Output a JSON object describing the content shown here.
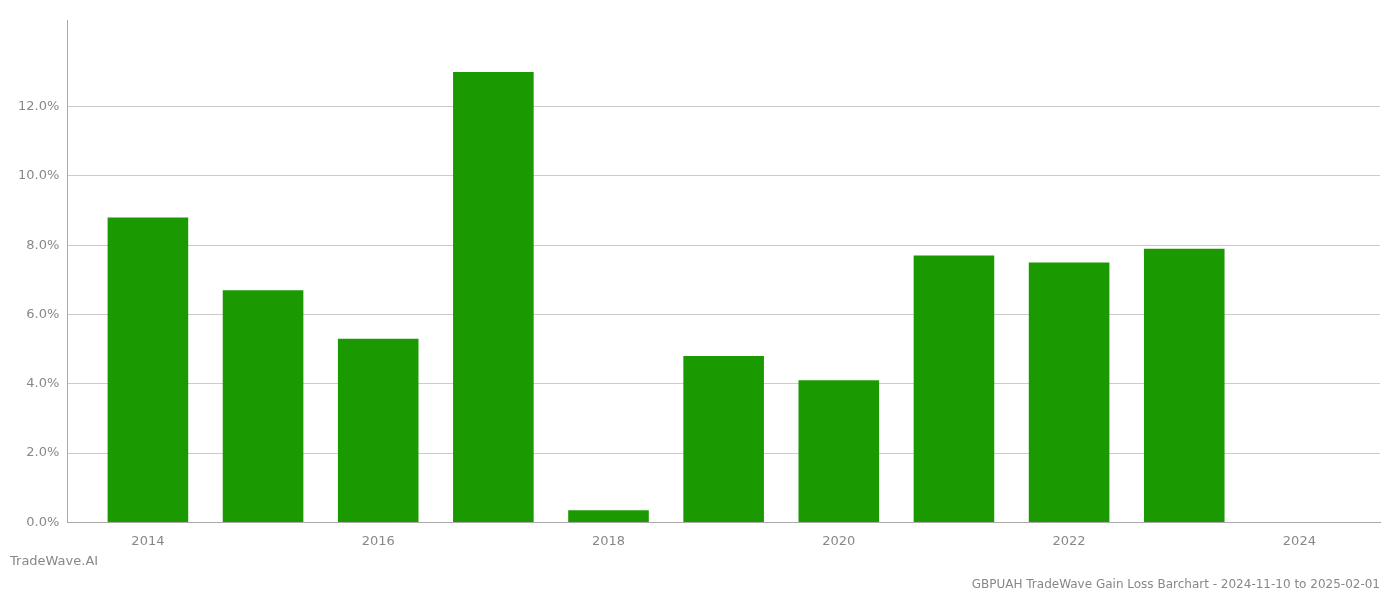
{
  "chart_data": {
    "type": "bar",
    "title": "GBPUAH TradeWave Gain Loss Barchart - 2024-11-10 to 2025-02-01",
    "annotations": [
      "TradeWave.AI"
    ],
    "x": [
      2014,
      2015,
      2016,
      2017,
      2018,
      2019,
      2020,
      2021,
      2022,
      2023
    ],
    "values": [
      0.088,
      0.067,
      0.053,
      0.13,
      0.0035,
      0.048,
      0.041,
      0.077,
      0.075,
      0.079
    ],
    "color": "#1a9a00",
    "xlim": [
      2013.3,
      2024.7
    ],
    "xticks": [
      2014,
      2016,
      2018,
      2020,
      2022,
      2024
    ],
    "ylim": [
      0,
      0.145
    ],
    "yticks": [
      {
        "value": 0.0,
        "label": "0.0%"
      },
      {
        "value": 0.02,
        "label": "2.0%"
      },
      {
        "value": 0.04,
        "label": "4.0%"
      },
      {
        "value": 0.06,
        "label": "6.0%"
      },
      {
        "value": 0.08,
        "label": "8.0%"
      },
      {
        "value": 0.1,
        "label": "10.0%"
      },
      {
        "value": 0.12,
        "label": "12.0%"
      }
    ],
    "grid": true
  }
}
